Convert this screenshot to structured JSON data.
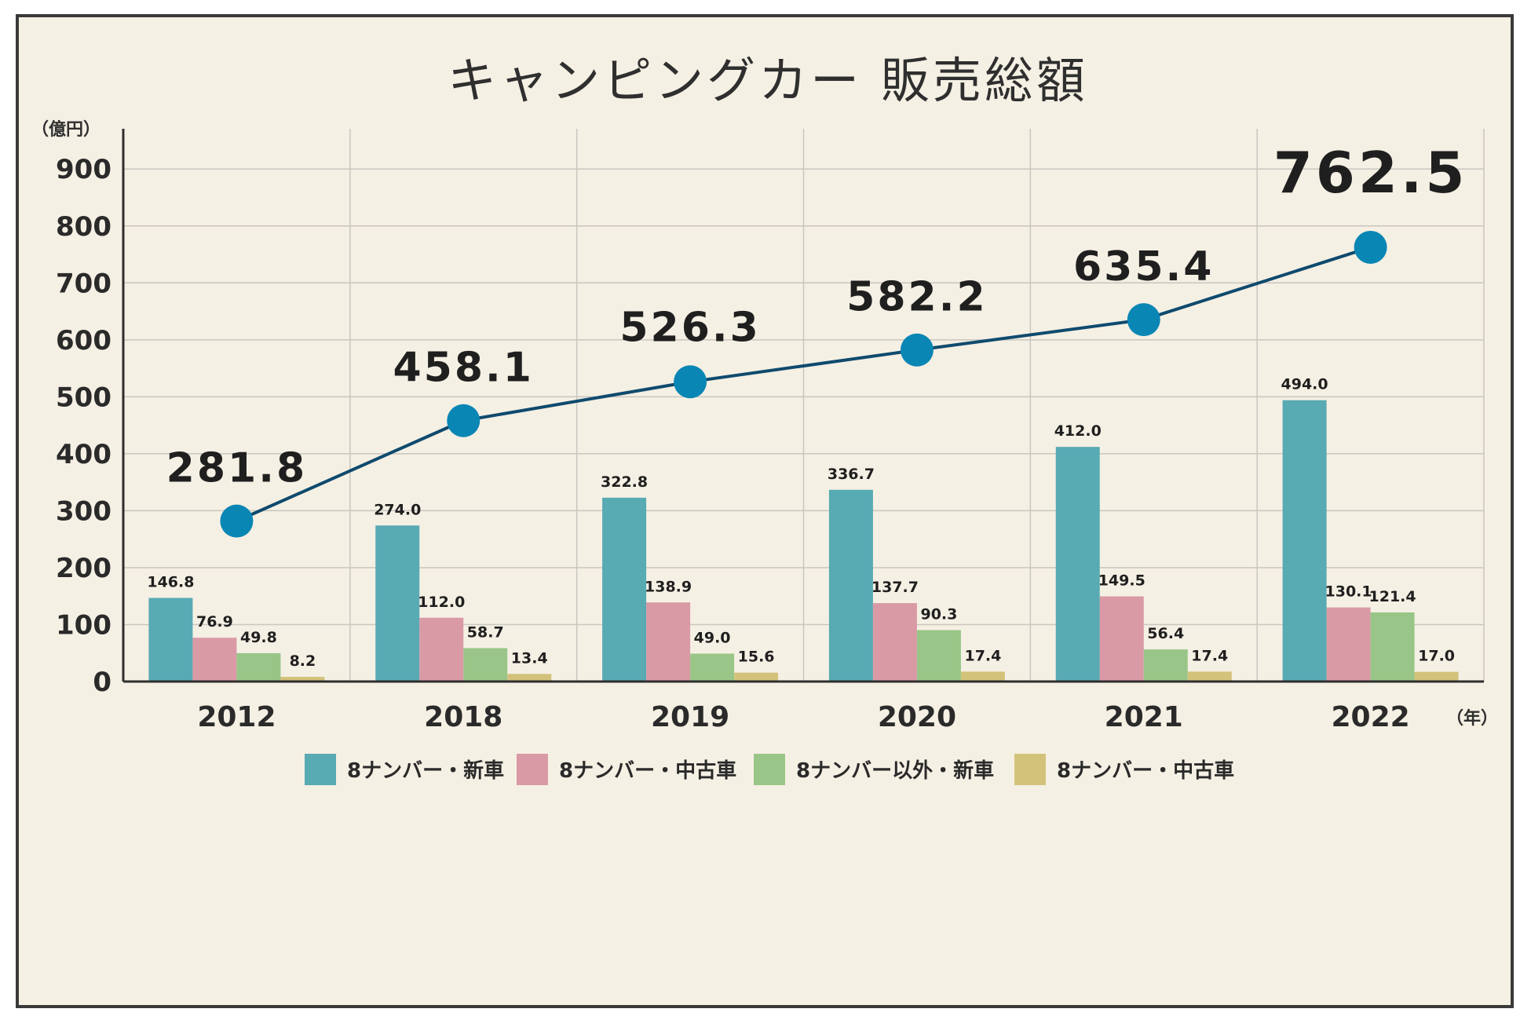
{
  "chart_data": {
    "type": "bar",
    "title": "キャンピングカー 販売総額",
    "y_unit": "（億円）",
    "x_unit": "（年）",
    "ylim": [
      0,
      1000
    ],
    "yticks": [
      0,
      100,
      200,
      300,
      400,
      500,
      600,
      700,
      800,
      900
    ],
    "categories": [
      "2012",
      "2018",
      "2019",
      "2020",
      "2021",
      "2022"
    ],
    "series": [
      {
        "name": "8ナンバー・新車",
        "color": "#58aab3",
        "values": [
          146.8,
          274.0,
          322.8,
          336.7,
          412.0,
          494.0
        ],
        "labels": [
          "146.8",
          "274.0",
          "322.8",
          "336.7",
          "412.0",
          "494.0"
        ]
      },
      {
        "name": "8ナンバー・中古車",
        "color": "#d99aa6",
        "values": [
          76.9,
          112.0,
          138.9,
          137.7,
          149.5,
          130.1
        ],
        "labels": [
          "76.9",
          "112.0",
          "138.9",
          "137.7",
          "149.5",
          "130.1"
        ]
      },
      {
        "name": "8ナンバー以外・新車",
        "color": "#99c688",
        "values": [
          49.8,
          58.7,
          49.0,
          90.3,
          56.4,
          121.4
        ],
        "labels": [
          "49.8",
          "58.7",
          "49.0",
          "90.3",
          "56.4",
          "121.4"
        ]
      },
      {
        "name": "8ナンバー・中古車",
        "color": "#d3c27a",
        "values": [
          8.2,
          13.4,
          15.6,
          17.4,
          17.4,
          17.0
        ],
        "labels": [
          "8.2",
          "13.4",
          "15.6",
          "17.4",
          "17.4",
          "17.0"
        ]
      }
    ],
    "total_line": {
      "name": "販売総額",
      "line_color": "#0f4a6e",
      "marker_color": "#0a86b5",
      "values": [
        281.8,
        458.1,
        526.3,
        582.2,
        635.4,
        762.5
      ],
      "labels": [
        "281.8",
        "458.1",
        "526.3",
        "582.2",
        "635.4",
        "762.5"
      ]
    },
    "legend_position": "bottom-center"
  },
  "colors": {
    "background": "#f5f0e4",
    "border": "#3a3a3a",
    "grid": "#c9c6c0",
    "axis": "#2e2e2e"
  }
}
